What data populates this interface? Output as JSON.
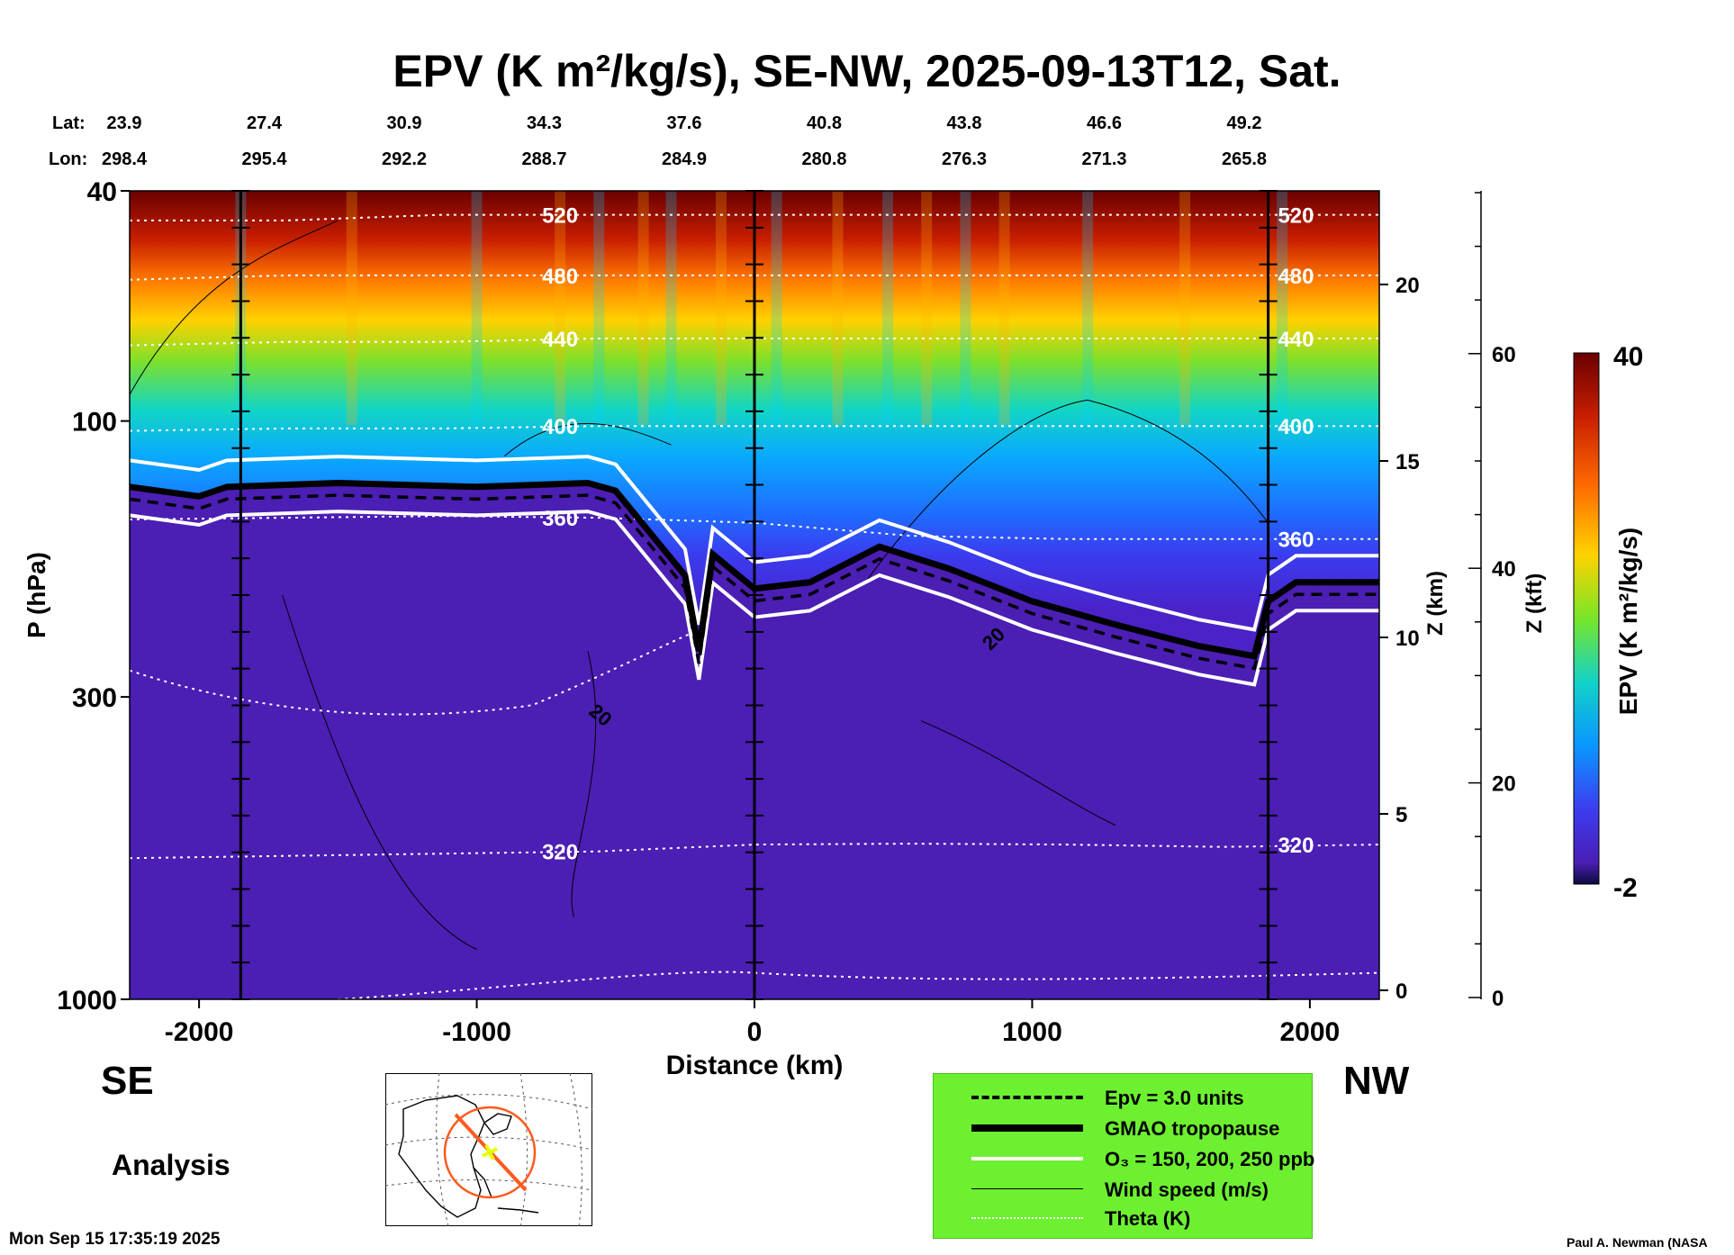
{
  "header": {
    "title": "EPV (K m²/kg/s), SE-NW, 2025-09-13T12, Sat."
  },
  "geo": {
    "lat_label": "Lat:",
    "lon_label": "Lon:",
    "lats": [
      "23.9",
      "27.4",
      "30.9",
      "34.3",
      "37.6",
      "40.8",
      "43.8",
      "46.6",
      "49.2"
    ],
    "lons": [
      "298.4",
      "295.4",
      "292.2",
      "288.7",
      "284.9",
      "280.8",
      "276.3",
      "271.3",
      "265.8"
    ]
  },
  "chart_data": {
    "type": "heatmap",
    "title": "EPV (K m²/kg/s), SE-NW, 2025-09-13T12, Sat.",
    "xlabel": "Distance (km)",
    "ylabel": "P (hPa)",
    "xlim": [
      -2250,
      2250
    ],
    "ylim_hpa": [
      1000,
      40
    ],
    "x_ticks": [
      -2000,
      -1000,
      0,
      1000,
      2000
    ],
    "y_ticks_hpa": [
      40,
      100,
      300,
      1000
    ],
    "z_km_label": "Z (km)",
    "z_km_ticks": [
      0,
      5,
      10,
      15,
      20
    ],
    "z_kft_label": "Z (kft)",
    "z_kft_ticks": [
      0,
      20,
      40,
      60
    ],
    "colorbar": {
      "label": "EPV (K m²/kg/s)",
      "min": -2,
      "max": 40,
      "min_label": "-2",
      "max_label": "40",
      "colors": [
        "#0a0a3c",
        "#3a0aa0",
        "#4b1ec8",
        "#3c3cff",
        "#1e78ff",
        "#00b4ff",
        "#00e6c8",
        "#32f050",
        "#c8f000",
        "#ffd200",
        "#ff8c00",
        "#ff3c00",
        "#d21400",
        "#a00000",
        "#6e0000"
      ]
    },
    "theta_levels_K": [
      {
        "label": "320",
        "pressure_hpa": [
          570,
          565,
          560,
          555,
          540,
          538,
          540,
          545,
          540
        ]
      },
      {
        "label": "360",
        "pressure_hpa": [
          148,
          147,
          146,
          147,
          150,
          158,
          160,
          160,
          160
        ]
      },
      {
        "label": "400",
        "pressure_hpa": [
          104,
          103,
          103,
          102,
          102,
          102,
          102,
          102,
          102
        ]
      },
      {
        "label": "440",
        "pressure_hpa": [
          74,
          73,
          73,
          72,
          72,
          72,
          72,
          72,
          72
        ]
      },
      {
        "label": "480",
        "pressure_hpa": [
          57,
          56,
          56,
          56,
          56,
          56,
          56,
          56,
          56
        ]
      },
      {
        "label": "520",
        "pressure_hpa": [
          45,
          45,
          44,
          44,
          44,
          44,
          44,
          44,
          44
        ]
      }
    ],
    "tropopause_hpa": {
      "x": [
        -2250,
        -2000,
        -1900,
        -1500,
        -1000,
        -600,
        -500,
        -250,
        -200,
        -150,
        0,
        200,
        450,
        700,
        1000,
        1300,
        1600,
        1800,
        1850,
        1950,
        2250
      ],
      "p": [
        130,
        135,
        130,
        128,
        130,
        128,
        132,
        185,
        250,
        170,
        195,
        190,
        165,
        180,
        205,
        225,
        245,
        255,
        205,
        190,
        190
      ]
    },
    "wind_label": "20",
    "vertical_markers_km": [
      -1850,
      0,
      1850
    ]
  },
  "labels": {
    "direction_left": "SE",
    "direction_right": "NW",
    "analysis": "Analysis"
  },
  "legend": {
    "items": [
      {
        "text": "Epv = 3.0 units"
      },
      {
        "text": "GMAO tropopause"
      },
      {
        "text": "O₃ = 150, 200, 250 ppb"
      },
      {
        "text": "Wind speed (m/s)"
      },
      {
        "text": "Theta (K)"
      }
    ]
  },
  "footer": {
    "timestamp": "Mon Sep 15 17:35:19 2025",
    "credit": "Paul A. Newman (NASA"
  }
}
